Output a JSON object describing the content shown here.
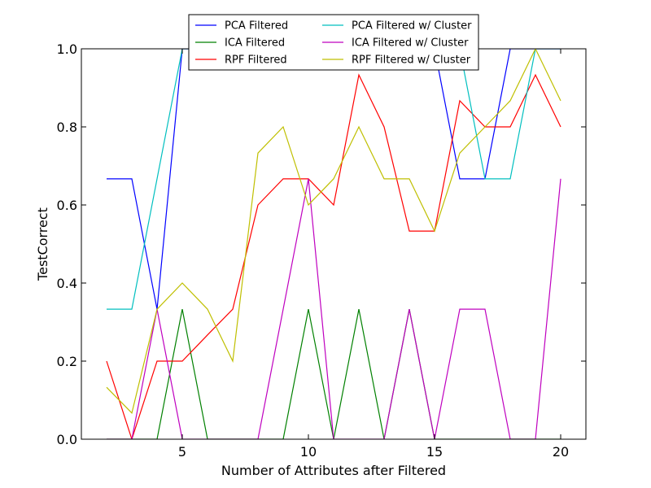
{
  "chart_data": {
    "type": "line",
    "title": "",
    "xlabel": "Number of Attributes after Filtered",
    "ylabel": "TestCorrect",
    "xlim": [
      1,
      21
    ],
    "ylim": [
      0,
      1
    ],
    "x_ticks": [
      5,
      10,
      15,
      20
    ],
    "y_ticks": [
      0.0,
      0.2,
      0.4,
      0.6,
      0.8,
      1.0
    ],
    "x_tick_labels": [
      "5",
      "10",
      "15",
      "20"
    ],
    "y_tick_labels": [
      "0.0",
      "0.2",
      "0.4",
      "0.6",
      "0.8",
      "1.0"
    ],
    "grid": false,
    "legend_position": "top-center",
    "x": [
      2,
      3,
      4,
      5,
      6,
      7,
      8,
      9,
      10,
      11,
      12,
      13,
      14,
      15,
      16,
      17,
      18,
      19,
      20
    ],
    "series": [
      {
        "name": "PCA Filtered",
        "color": "#0000ff",
        "values": [
          0.667,
          0.667,
          0.333,
          1.0,
          1.0,
          1.0,
          1.0,
          1.0,
          1.0,
          1.0,
          1.0,
          1.0,
          1.0,
          1.0,
          0.667,
          0.667,
          1.0,
          1.0,
          1.0
        ]
      },
      {
        "name": "ICA Filtered",
        "color": "#008000",
        "values": [
          0.0,
          0.0,
          0.0,
          0.333,
          0.0,
          0.0,
          0.0,
          0.0,
          0.333,
          0.0,
          0.333,
          0.0,
          0.333,
          0.0,
          0.0,
          0.0,
          0.0,
          0.0,
          0.0
        ]
      },
      {
        "name": "RPF Filtered",
        "color": "#ff0000",
        "values": [
          0.2,
          0.0,
          0.2,
          0.2,
          0.267,
          0.333,
          0.6,
          0.667,
          0.667,
          0.6,
          0.933,
          0.8,
          0.533,
          0.533,
          0.867,
          0.8,
          0.8,
          0.933,
          0.8
        ]
      },
      {
        "name": "PCA Filtered w/ Cluster",
        "color": "#00bfbf",
        "values": [
          0.333,
          0.333,
          0.667,
          1.0,
          1.0,
          1.0,
          1.0,
          1.0,
          1.0,
          1.0,
          1.0,
          1.0,
          1.0,
          1.0,
          1.0,
          0.667,
          0.667,
          1.0,
          1.0
        ]
      },
      {
        "name": "ICA Filtered w/ Cluster",
        "color": "#bf00bf",
        "values": [
          0.0,
          0.0,
          0.333,
          0.0,
          0.0,
          0.0,
          0.0,
          0.333,
          0.667,
          0.0,
          0.0,
          0.0,
          0.333,
          0.0,
          0.333,
          0.333,
          0.0,
          0.0,
          0.667
        ]
      },
      {
        "name": "RPF Filtered w/ Cluster",
        "color": "#bfbf00",
        "values": [
          0.133,
          0.067,
          0.333,
          0.4,
          0.333,
          0.2,
          0.733,
          0.8,
          0.6,
          0.667,
          0.8,
          0.667,
          0.667,
          0.533,
          0.733,
          0.8,
          0.867,
          1.0,
          0.867
        ]
      }
    ]
  }
}
